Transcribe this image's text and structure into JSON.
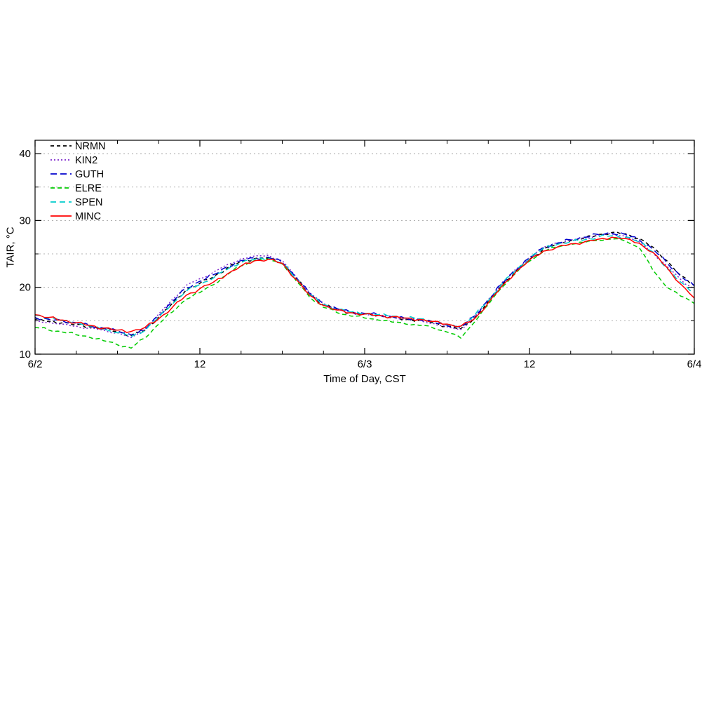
{
  "figure": {
    "background": "#ffffff"
  },
  "axis": {
    "xlabel": "Time of Day, CST",
    "ylabel": "TAIR, °C"
  },
  "chart_data": {
    "type": "line",
    "title": "",
    "xlabel": "Time of Day, CST",
    "ylabel": "TAIR, °C",
    "x_unit": "hours from 6/2 00:00 CST",
    "xlim": [
      0,
      48
    ],
    "ylim": [
      10,
      42
    ],
    "x_major_ticks": [
      0,
      12,
      24,
      36,
      48
    ],
    "x_tick_labels": [
      "6/2",
      "12",
      "6/3",
      "12",
      "6/4"
    ],
    "x_minor_step": 3,
    "y_major_ticks": [
      10,
      20,
      30,
      40
    ],
    "y_tick_labels": [
      "10",
      "20",
      "30",
      "40"
    ],
    "y_minor_ticks": [
      15,
      25,
      35
    ],
    "y_gridlines": [
      15,
      20,
      25,
      30,
      35,
      40
    ],
    "grid_color": "#999999",
    "grid_dash": "2,4",
    "legend_position": "top-left",
    "x": [
      0,
      1,
      2,
      3,
      4,
      5,
      6,
      7,
      8,
      9,
      10,
      11,
      12,
      13,
      14,
      15,
      16,
      17,
      18,
      19,
      20,
      21,
      22,
      23,
      24,
      25,
      26,
      27,
      28,
      29,
      30,
      31,
      32,
      33,
      34,
      35,
      36,
      37,
      38,
      39,
      40,
      41,
      42,
      43,
      44,
      45,
      46,
      47,
      48
    ],
    "series": [
      {
        "name": "NRMN",
        "color": "#000000",
        "dash": "5,4",
        "values": [
          15.2,
          14.9,
          14.7,
          14.4,
          14.1,
          13.8,
          13.4,
          12.8,
          13.6,
          15.6,
          17.6,
          19.6,
          20.6,
          21.6,
          22.9,
          23.9,
          24.3,
          24.4,
          23.7,
          21.4,
          19.0,
          17.4,
          16.7,
          16.2,
          16.0,
          15.8,
          15.5,
          15.2,
          15.1,
          14.7,
          14.2,
          13.8,
          15.4,
          17.9,
          20.4,
          22.4,
          24.2,
          25.7,
          26.5,
          27.0,
          27.4,
          27.9,
          28.2,
          28.0,
          27.3,
          26.0,
          24.0,
          21.8,
          20.3
        ]
      },
      {
        "name": "KIN2",
        "color": "#7d26cd",
        "dash": "2,3",
        "values": [
          15.0,
          14.8,
          14.5,
          14.2,
          13.9,
          13.6,
          13.2,
          12.5,
          13.8,
          16.0,
          18.2,
          20.3,
          21.3,
          22.3,
          23.4,
          24.3,
          24.7,
          24.8,
          24.0,
          21.6,
          19.2,
          17.6,
          16.8,
          16.3,
          16.1,
          15.9,
          15.6,
          15.3,
          15.1,
          14.6,
          14.1,
          13.7,
          15.6,
          18.2,
          20.7,
          22.7,
          24.5,
          26.0,
          26.7,
          27.1,
          27.4,
          27.8,
          28.0,
          27.7,
          26.8,
          25.2,
          23.2,
          21.2,
          19.8
        ]
      },
      {
        "name": "GUTH",
        "color": "#0000cc",
        "dash": "9,5",
        "values": [
          15.5,
          15.2,
          15.0,
          14.7,
          14.3,
          13.9,
          13.5,
          12.9,
          13.7,
          15.8,
          17.9,
          19.9,
          20.9,
          21.9,
          23.1,
          24.0,
          24.4,
          24.5,
          23.8,
          21.5,
          19.1,
          17.5,
          16.8,
          16.3,
          16.1,
          15.9,
          15.6,
          15.3,
          15.2,
          14.8,
          14.3,
          14.0,
          15.7,
          18.1,
          20.6,
          22.6,
          24.4,
          25.9,
          26.6,
          27.1,
          27.5,
          27.9,
          28.1,
          27.9,
          27.1,
          25.7,
          23.7,
          21.7,
          20.2
        ]
      },
      {
        "name": "ELRE",
        "color": "#00cc00",
        "dash": "6,4",
        "values": [
          14.0,
          13.6,
          13.3,
          12.9,
          12.5,
          12.0,
          11.4,
          10.9,
          12.4,
          14.5,
          16.3,
          18.2,
          19.2,
          20.4,
          21.9,
          23.2,
          24.0,
          24.2,
          23.5,
          21.0,
          18.5,
          17.0,
          16.2,
          15.7,
          15.4,
          15.1,
          14.8,
          14.5,
          14.3,
          13.9,
          13.3,
          12.4,
          14.8,
          17.4,
          20.0,
          22.1,
          23.9,
          25.3,
          26.0,
          26.4,
          26.7,
          27.0,
          27.2,
          26.9,
          25.9,
          22.5,
          20.0,
          18.7,
          17.6
        ]
      },
      {
        "name": "SPEN",
        "color": "#00cccc",
        "dash": "8,5",
        "values": [
          15.8,
          15.4,
          15.0,
          14.6,
          14.2,
          13.7,
          13.2,
          12.6,
          13.5,
          15.5,
          17.5,
          19.4,
          20.4,
          21.4,
          22.7,
          23.7,
          24.2,
          24.3,
          23.6,
          21.3,
          18.9,
          17.4,
          16.7,
          16.3,
          16.1,
          15.9,
          15.7,
          15.4,
          15.3,
          14.9,
          14.4,
          14.1,
          15.8,
          18.0,
          20.5,
          22.5,
          24.3,
          25.8,
          26.4,
          26.8,
          27.1,
          27.5,
          27.7,
          27.5,
          26.8,
          25.3,
          22.8,
          20.8,
          19.2
        ]
      },
      {
        "name": "MINC",
        "color": "#ff0000",
        "dash": "",
        "values": [
          15.9,
          15.5,
          15.1,
          14.7,
          14.3,
          13.9,
          13.6,
          13.4,
          14.0,
          15.3,
          17.0,
          18.8,
          19.8,
          20.8,
          22.0,
          23.2,
          24.0,
          24.2,
          23.6,
          21.2,
          18.8,
          17.3,
          16.6,
          16.2,
          16.0,
          15.8,
          15.6,
          15.4,
          15.2,
          14.9,
          14.5,
          14.2,
          15.3,
          17.7,
          20.2,
          22.3,
          24.1,
          25.4,
          26.0,
          26.5,
          26.8,
          27.2,
          27.5,
          27.3,
          26.6,
          25.2,
          23.0,
          20.5,
          18.4
        ]
      }
    ]
  }
}
